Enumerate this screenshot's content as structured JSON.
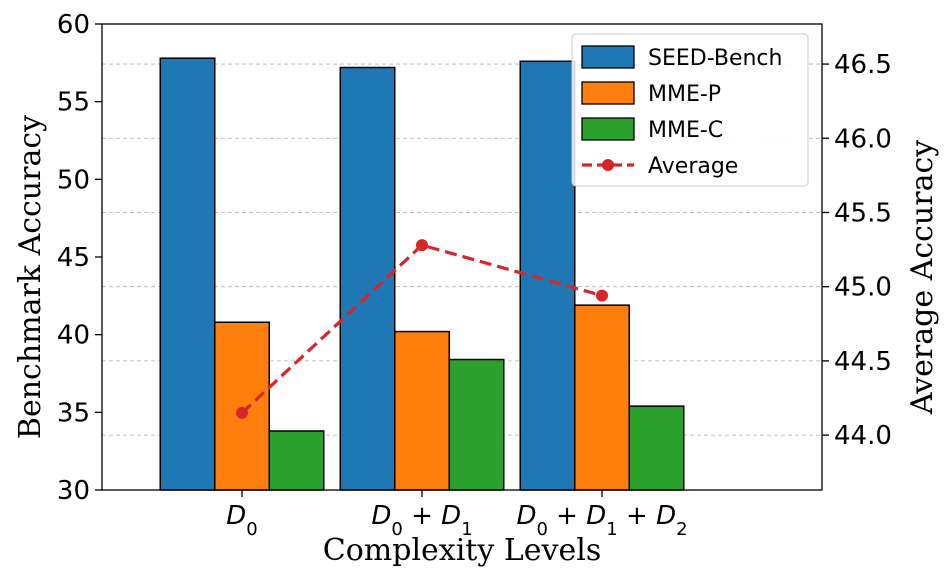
{
  "chart_data": {
    "type": "bar",
    "categories": [
      "D0",
      "D0 + D1",
      "D0 + D1 + D2"
    ],
    "category_display": [
      [
        {
          "t": "D",
          "s": "0"
        }
      ],
      [
        {
          "t": "D",
          "s": "0"
        },
        {
          "t": " + "
        },
        {
          "t": "D",
          "s": "1"
        }
      ],
      [
        {
          "t": "D",
          "s": "0"
        },
        {
          "t": " + "
        },
        {
          "t": "D",
          "s": "1"
        },
        {
          "t": " + "
        },
        {
          "t": "D",
          "s": "2"
        }
      ]
    ],
    "series": [
      {
        "name": "SEED-Bench",
        "color": "#1f77b4",
        "values": [
          57.8,
          57.2,
          57.6
        ]
      },
      {
        "name": "MME-P",
        "color": "#ff7f0e",
        "values": [
          40.8,
          40.2,
          41.9
        ]
      },
      {
        "name": "MME-C",
        "color": "#2ca02c",
        "values": [
          33.8,
          38.4,
          35.4
        ]
      }
    ],
    "line_series": {
      "name": "Average",
      "color": "#d62728",
      "style": "dashed",
      "marker": "circle",
      "axis": "right",
      "values": [
        44.15,
        45.28,
        44.94
      ]
    },
    "xlabel": "Complexity Levels",
    "ylabel": "Benchmark Accuracy",
    "y2label": "Average Accuracy",
    "ylim": [
      30,
      60
    ],
    "y2lim": [
      43.63,
      46.77
    ],
    "yticks": [
      30,
      35,
      40,
      45,
      50,
      55,
      60
    ],
    "y2ticks": [
      "44.0",
      "44.5",
      "45.0",
      "45.5",
      "46.0",
      "46.5"
    ],
    "grid": "right-axis dashed",
    "legend_position": "top-right"
  }
}
